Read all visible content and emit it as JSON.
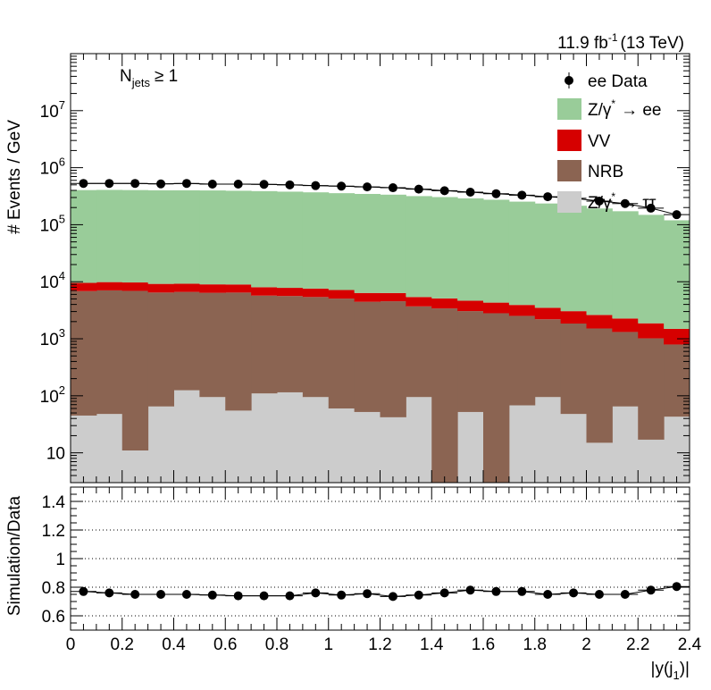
{
  "chart_data": {
    "type": "bar",
    "stacked": true,
    "lumi_label": "11.9 fb",
    "lumi_exp": "-1",
    "lumi_energy": "(13 TeV)",
    "selection_main": "N",
    "selection_sub": "jets",
    "selection_rest": "≥ 1",
    "ylabel": "# Events / GeV",
    "xlabel_main": "|y(j",
    "xlabel_sub": "1",
    "xlabel_end": ")|",
    "ratio_ylabel": "Simulation/Data",
    "yscale": "log",
    "ylim": [
      3,
      100000000.0
    ],
    "xlim": [
      0,
      2.4
    ],
    "ratio_ylim": [
      0.5,
      1.5
    ],
    "x_ticks": [
      "0",
      "0.2",
      "0.4",
      "0.6",
      "0.8",
      "1",
      "1.2",
      "1.4",
      "1.6",
      "1.8",
      "2",
      "2.2",
      "2.4"
    ],
    "y_ticks": [
      {
        "v": 10,
        "base": "10",
        "exp": ""
      },
      {
        "v": 100,
        "base": "10",
        "exp": "2"
      },
      {
        "v": 1000,
        "base": "10",
        "exp": "3"
      },
      {
        "v": 10000,
        "base": "10",
        "exp": "4"
      },
      {
        "v": 100000,
        "base": "10",
        "exp": "5"
      },
      {
        "v": 1000000,
        "base": "10",
        "exp": "6"
      },
      {
        "v": 10000000,
        "base": "10",
        "exp": "7"
      }
    ],
    "ratio_ticks": [
      "0.6",
      "0.8",
      "1",
      "1.2",
      "1.4"
    ],
    "bin_edges": [
      0,
      0.1,
      0.2,
      0.3,
      0.4,
      0.5,
      0.6,
      0.7,
      0.8,
      0.9,
      1.0,
      1.1,
      1.2,
      1.3,
      1.4,
      1.5,
      1.6,
      1.7,
      1.8,
      1.9,
      2.0,
      2.1,
      2.2,
      2.3,
      2.4
    ],
    "series": [
      {
        "name": "Z/γ* → ττ",
        "color": "#cccccc",
        "values": [
          45,
          48,
          11,
          65,
          125,
          95,
          55,
          110,
          115,
          95,
          60,
          52,
          42,
          95,
          1.5,
          52,
          1.5,
          68,
          95,
          48,
          15,
          65,
          17,
          43
        ]
      },
      {
        "name": "NRB",
        "color": "#8b6452",
        "values": [
          6800,
          7000,
          6900,
          6400,
          6500,
          6300,
          6400,
          5600,
          5500,
          5300,
          5000,
          4400,
          4500,
          3600,
          3400,
          3000,
          2800,
          2450,
          2100,
          1800,
          1500,
          1250,
          1000,
          750
        ]
      },
      {
        "name": "VV",
        "color": "#d60000",
        "values": [
          2700,
          2800,
          2800,
          2700,
          2600,
          2600,
          2500,
          2300,
          2200,
          2200,
          2100,
          1900,
          1800,
          1700,
          1700,
          1600,
          1500,
          1400,
          1300,
          1200,
          1100,
          950,
          850,
          700
        ]
      },
      {
        "name": "Z/γ* → ee",
        "color": "#99cc99",
        "values": [
          395000,
          398000,
          395000,
          392000,
          392000,
          390000,
          385000,
          380000,
          372000,
          362000,
          350000,
          340000,
          330000,
          312000,
          300000,
          285000,
          270000,
          250000,
          232000,
          212000,
          190000,
          170000,
          147000,
          118000
        ]
      }
    ],
    "data": {
      "name": "ee Data",
      "values": [
        530000,
        530000,
        530000,
        520000,
        530000,
        515000,
        515000,
        510000,
        500000,
        485000,
        475000,
        460000,
        445000,
        420000,
        395000,
        372000,
        350000,
        330000,
        310000,
        290000,
        260000,
        235000,
        195000,
        150000
      ]
    },
    "ratio": [
      0.77,
      0.76,
      0.75,
      0.75,
      0.75,
      0.745,
      0.74,
      0.74,
      0.74,
      0.76,
      0.745,
      0.755,
      0.735,
      0.745,
      0.76,
      0.78,
      0.77,
      0.77,
      0.75,
      0.76,
      0.75,
      0.75,
      0.78,
      0.805
    ],
    "legend": [
      {
        "label": "ee Data",
        "kind": "marker"
      },
      {
        "label": "Z/γ",
        "sup": "*",
        "rest": "→ ee",
        "kind": "fill",
        "color": "#99cc99"
      },
      {
        "label": "VV",
        "kind": "fill",
        "color": "#d60000"
      },
      {
        "label": "NRB",
        "kind": "fill",
        "color": "#8b6452"
      },
      {
        "label": "Z/γ",
        "sup": "*",
        "rest": "→ ττ",
        "kind": "fill",
        "color": "#cccccc"
      }
    ]
  }
}
